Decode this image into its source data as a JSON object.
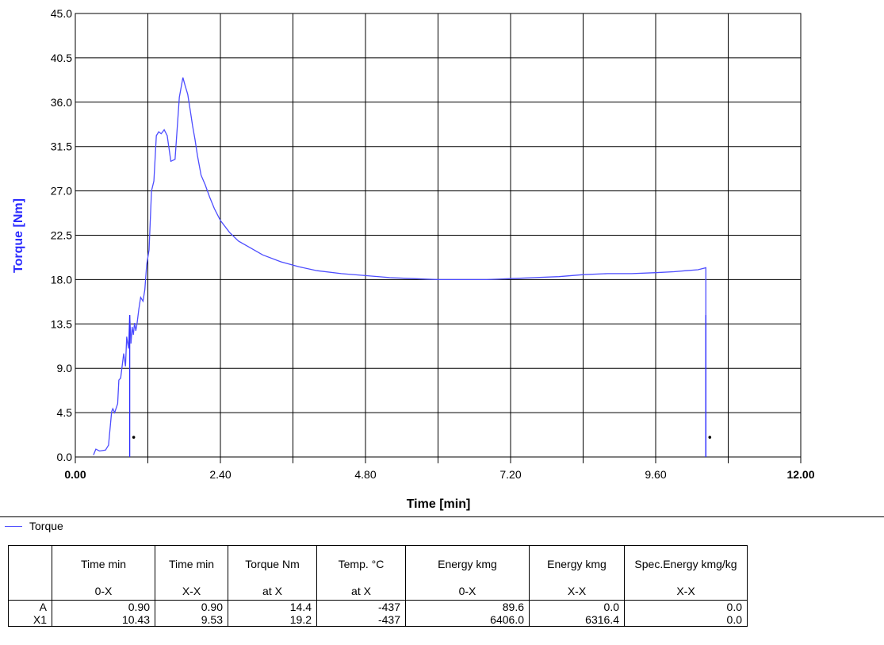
{
  "chart_data": {
    "type": "line",
    "title": "",
    "xlabel": "Time [min]",
    "ylabel": "Torque [Nm]",
    "xlim": [
      0,
      12
    ],
    "ylim": [
      0,
      45
    ],
    "x_ticks": [
      "0.00",
      "2.40",
      "4.80",
      "7.20",
      "9.60",
      "12.00"
    ],
    "y_ticks": [
      "0.0",
      "4.5",
      "9.0",
      "13.5",
      "18.0",
      "22.5",
      "27.0",
      "31.5",
      "36.0",
      "40.5",
      "45.0"
    ],
    "grid": true,
    "legend_position": "bottom-left",
    "series": [
      {
        "name": "Torque",
        "color": "#4d4dff",
        "x": [
          0.3,
          0.34,
          0.4,
          0.5,
          0.55,
          0.6,
          0.62,
          0.65,
          0.7,
          0.72,
          0.75,
          0.8,
          0.83,
          0.85,
          0.88,
          0.9,
          0.92,
          0.94,
          0.96,
          0.98,
          1.0,
          1.02,
          1.05,
          1.08,
          1.12,
          1.15,
          1.18,
          1.22,
          1.26,
          1.3,
          1.34,
          1.38,
          1.42,
          1.47,
          1.52,
          1.58,
          1.65,
          1.72,
          1.78,
          1.82,
          1.86,
          1.9,
          1.94,
          1.98,
          2.02,
          2.08,
          2.15,
          2.22,
          2.3,
          2.4,
          2.55,
          2.7,
          2.9,
          3.1,
          3.4,
          3.7,
          4.0,
          4.4,
          4.8,
          5.2,
          5.6,
          6.0,
          6.4,
          6.8,
          7.2,
          7.6,
          8.0,
          8.4,
          8.8,
          9.2,
          9.6,
          9.9,
          10.1,
          10.3,
          10.43,
          10.43
        ],
        "y": [
          0.2,
          0.8,
          0.6,
          0.7,
          1.2,
          4.6,
          4.9,
          4.5,
          5.4,
          7.8,
          8.0,
          10.5,
          9.2,
          12.2,
          11.0,
          14.4,
          11.5,
          13.2,
          12.4,
          13.6,
          12.8,
          13.5,
          15.0,
          16.2,
          15.8,
          17.0,
          19.5,
          21.0,
          27.0,
          28.0,
          32.6,
          33.0,
          32.8,
          33.2,
          32.6,
          30.0,
          30.2,
          36.5,
          38.5,
          37.6,
          36.8,
          35.2,
          33.6,
          32.2,
          30.6,
          28.6,
          27.6,
          26.4,
          25.2,
          24.0,
          22.8,
          21.9,
          21.2,
          20.5,
          19.8,
          19.3,
          18.9,
          18.6,
          18.4,
          18.2,
          18.1,
          18.0,
          18.0,
          18.0,
          18.1,
          18.2,
          18.3,
          18.5,
          18.6,
          18.6,
          18.7,
          18.8,
          18.9,
          19.0,
          19.2,
          0.0
        ]
      }
    ],
    "markers": [
      {
        "label": "A",
        "x": 0.9
      },
      {
        "label": "X1",
        "x": 10.43
      }
    ]
  },
  "legend": {
    "label": "Torque"
  },
  "table": {
    "headers": [
      {
        "top": "",
        "bottom": ""
      },
      {
        "top": "Time min",
        "bottom": "0-X"
      },
      {
        "top": "Time min",
        "bottom": "X-X"
      },
      {
        "top": "Torque Nm",
        "bottom": "at X"
      },
      {
        "top": "Temp. °C",
        "bottom": "at X"
      },
      {
        "top": "Energy kmg",
        "bottom": "0-X"
      },
      {
        "top": "Energy kmg",
        "bottom": "X-X"
      },
      {
        "top": "Spec.Energy kmg/kg",
        "bottom": "X-X"
      }
    ],
    "rows": [
      [
        "A",
        "0.90",
        "0.90",
        "14.4",
        "-437",
        "89.6",
        "0.0",
        "0.0"
      ],
      [
        "X1",
        "10.43",
        "9.53",
        "19.2",
        "-437",
        "6406.0",
        "6316.4",
        "0.0"
      ]
    ]
  }
}
